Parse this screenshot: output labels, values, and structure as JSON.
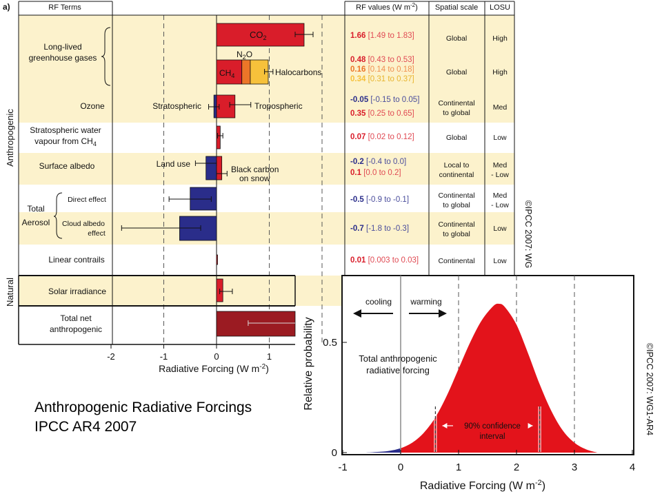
{
  "caption": {
    "line1": "Anthropogenic Radiative Forcings",
    "line2": "IPCC AR4 2007"
  },
  "panel_label": "a)",
  "copyright_left": "©IPCC 2007: WG",
  "copyright_right": "©IPCC 2007: WG1-AR4",
  "colors": {
    "band": "#fcf2cc",
    "red": "#d91d2a",
    "darkred": "#9b1b22",
    "orange": "#ec7628",
    "yellow": "#f6c13b",
    "navy": "#2a2d8a",
    "curve_red": "#e3131b",
    "curve_blue": "#2a2d8a"
  },
  "chart_data": [
    {
      "type": "bar",
      "title": "",
      "xlabel": "Radiative Forcing (W m-2)",
      "xlim": [
        -2,
        2
      ],
      "xticks": [
        "-2",
        "-1",
        "0",
        "1"
      ],
      "grid": "dashed vertical lines at -1, 1, 2",
      "headers": {
        "rf_terms": "RF Terms",
        "rf_values": "RF values (W m-2)",
        "spatial": "Spatial scale",
        "losu": "LOSU"
      },
      "group_labels": {
        "anthropogenic": "Anthropogenic",
        "natural": "Natural",
        "total_aerosol": "Total Aerosol"
      },
      "rows": [
        {
          "term": [
            "Long-lived",
            "greenhouse gases"
          ],
          "bars": [
            {
              "label": "CO2",
              "value": 1.66,
              "low": 1.49,
              "high": 1.83,
              "color": "red"
            }
          ],
          "value_lines": [
            {
              "bold": "1.66",
              "range": "[1.49 to 1.83]",
              "color": "red"
            }
          ],
          "spatial": [
            "Global"
          ],
          "losu": [
            "High"
          ]
        },
        {
          "term": [],
          "bars": [
            {
              "label": "CH4",
              "value": 0.48,
              "start": 0,
              "color": "red"
            },
            {
              "label": "N2O",
              "value": 0.16,
              "start": 0.48,
              "color": "orange"
            },
            {
              "label": "Halocarbons",
              "value": 0.34,
              "start": 0.64,
              "low": 0.91,
              "high": 1.07,
              "color": "yellow"
            }
          ],
          "value_lines": [
            {
              "bold": "0.48",
              "range": "[0.43 to 0.53]",
              "color": "red"
            },
            {
              "bold": "0.16",
              "range": "[0.14 to 0.18]",
              "color": "orange"
            },
            {
              "bold": "0.34",
              "range": "[0.31 to 0.37]",
              "color": "yellow"
            }
          ],
          "spatial": [
            "Global"
          ],
          "losu": [
            "High"
          ]
        },
        {
          "term": [
            "Ozone"
          ],
          "bars": [
            {
              "label": "Stratospheric",
              "value": -0.05,
              "low": -0.15,
              "high": 0.05,
              "color": "navy"
            },
            {
              "label": "Tropospheric",
              "value": 0.35,
              "low": 0.25,
              "high": 0.65,
              "color": "red"
            }
          ],
          "value_lines": [
            {
              "bold": "-0.05",
              "range": "[-0.15 to 0.05]",
              "color": "navy"
            },
            {
              "bold": "0.35",
              "range": "[0.25 to 0.65]",
              "color": "red"
            }
          ],
          "spatial": [
            "Continental",
            "to global"
          ],
          "losu": [
            "Med"
          ]
        },
        {
          "term": [
            "Stratospheric water",
            "vapour from CH4"
          ],
          "bars": [
            {
              "label": "",
              "value": 0.07,
              "low": 0.02,
              "high": 0.12,
              "color": "red"
            }
          ],
          "value_lines": [
            {
              "bold": "0.07",
              "range": "[0.02 to 0.12]",
              "color": "red"
            }
          ],
          "spatial": [
            "Global"
          ],
          "losu": [
            "Low"
          ]
        },
        {
          "term": [
            "Surface albedo"
          ],
          "bars": [
            {
              "label": "Land use",
              "value": -0.2,
              "low": -0.4,
              "high": 0.0,
              "color": "navy"
            },
            {
              "label": "Black carbon on snow",
              "value": 0.1,
              "low": 0.0,
              "high": 0.2,
              "color": "red"
            }
          ],
          "value_lines": [
            {
              "bold": "-0.2",
              "range": "[-0.4 to 0.0]",
              "color": "navy"
            },
            {
              "bold": "0.1",
              "range": "[0.0 to 0.2]",
              "color": "red"
            }
          ],
          "spatial": [
            "Local to",
            "continental"
          ],
          "losu": [
            "Med",
            "- Low"
          ]
        },
        {
          "term": [
            "Direct effect"
          ],
          "bars": [
            {
              "label": "",
              "value": -0.5,
              "low": -0.9,
              "high": -0.1,
              "color": "navy"
            }
          ],
          "value_lines": [
            {
              "bold": "-0.5",
              "range": "[-0.9 to -0.1]",
              "color": "navy"
            }
          ],
          "spatial": [
            "Continental",
            "to global"
          ],
          "losu": [
            "Med",
            "- Low"
          ]
        },
        {
          "term": [
            "Cloud albedo",
            "effect"
          ],
          "bars": [
            {
              "label": "",
              "value": -0.7,
              "low": -1.8,
              "high": -0.3,
              "color": "navy"
            }
          ],
          "value_lines": [
            {
              "bold": "-0.7",
              "range": "[-1.8 to -0.3]",
              "color": "navy"
            }
          ],
          "spatial": [
            "Continental",
            "to global"
          ],
          "losu": [
            "Low"
          ]
        },
        {
          "term": [
            "Linear contrails"
          ],
          "bars": [
            {
              "label": "",
              "value": 0.01,
              "low": 0.003,
              "high": 0.03,
              "color": "red"
            }
          ],
          "value_lines": [
            {
              "bold": "0.01",
              "range": "[0.003 to 0.03]",
              "color": "red"
            }
          ],
          "spatial": [
            "Continental"
          ],
          "losu": [
            "Low"
          ]
        },
        {
          "term": [
            "Solar irradiance"
          ],
          "bars": [
            {
              "label": "",
              "value": 0.12,
              "low": 0.06,
              "high": 0.3,
              "color": "red"
            }
          ],
          "value_lines": [],
          "spatial": [],
          "losu": []
        },
        {
          "term": [
            "Total net",
            "anthropogenic"
          ],
          "bars": [
            {
              "label": "",
              "value": 1.6,
              "low": 0.6,
              "high": 2.4,
              "color": "darkred"
            }
          ],
          "value_lines": [],
          "spatial": [],
          "losu": []
        }
      ]
    },
    {
      "type": "area",
      "title": "",
      "xlabel": "Radiative Forcing (W m-2)",
      "ylabel": "Relative probability",
      "xlim": [
        -1,
        4
      ],
      "ylim": [
        0,
        0.75
      ],
      "xticks": [
        "-1",
        "0",
        "1",
        "2",
        "3",
        "4"
      ],
      "yticks": [
        "0",
        "0.5"
      ],
      "series": [
        {
          "name": "Total anthropogenic radiative forcing",
          "x": [
            -0.6,
            -0.4,
            -0.2,
            0.0,
            0.2,
            0.4,
            0.6,
            0.8,
            1.0,
            1.2,
            1.4,
            1.6,
            1.7,
            1.8,
            2.0,
            2.2,
            2.4,
            2.6,
            2.8,
            3.0,
            3.2,
            3.4
          ],
          "y": [
            0.0,
            0.003,
            0.008,
            0.02,
            0.045,
            0.09,
            0.16,
            0.26,
            0.38,
            0.5,
            0.6,
            0.665,
            0.675,
            0.66,
            0.58,
            0.45,
            0.31,
            0.19,
            0.1,
            0.045,
            0.015,
            0.0
          ]
        }
      ],
      "annotations": {
        "cooling": "cooling",
        "warming": "warming",
        "curve_label_1": "Total anthropogenic",
        "curve_label_2": "radiative forcing",
        "ci_1": "90% confidence",
        "ci_2": "interval"
      },
      "confidence_interval": [
        0.6,
        2.4
      ],
      "grid": "dashed vertical lines at 1, 2, 3"
    }
  ]
}
